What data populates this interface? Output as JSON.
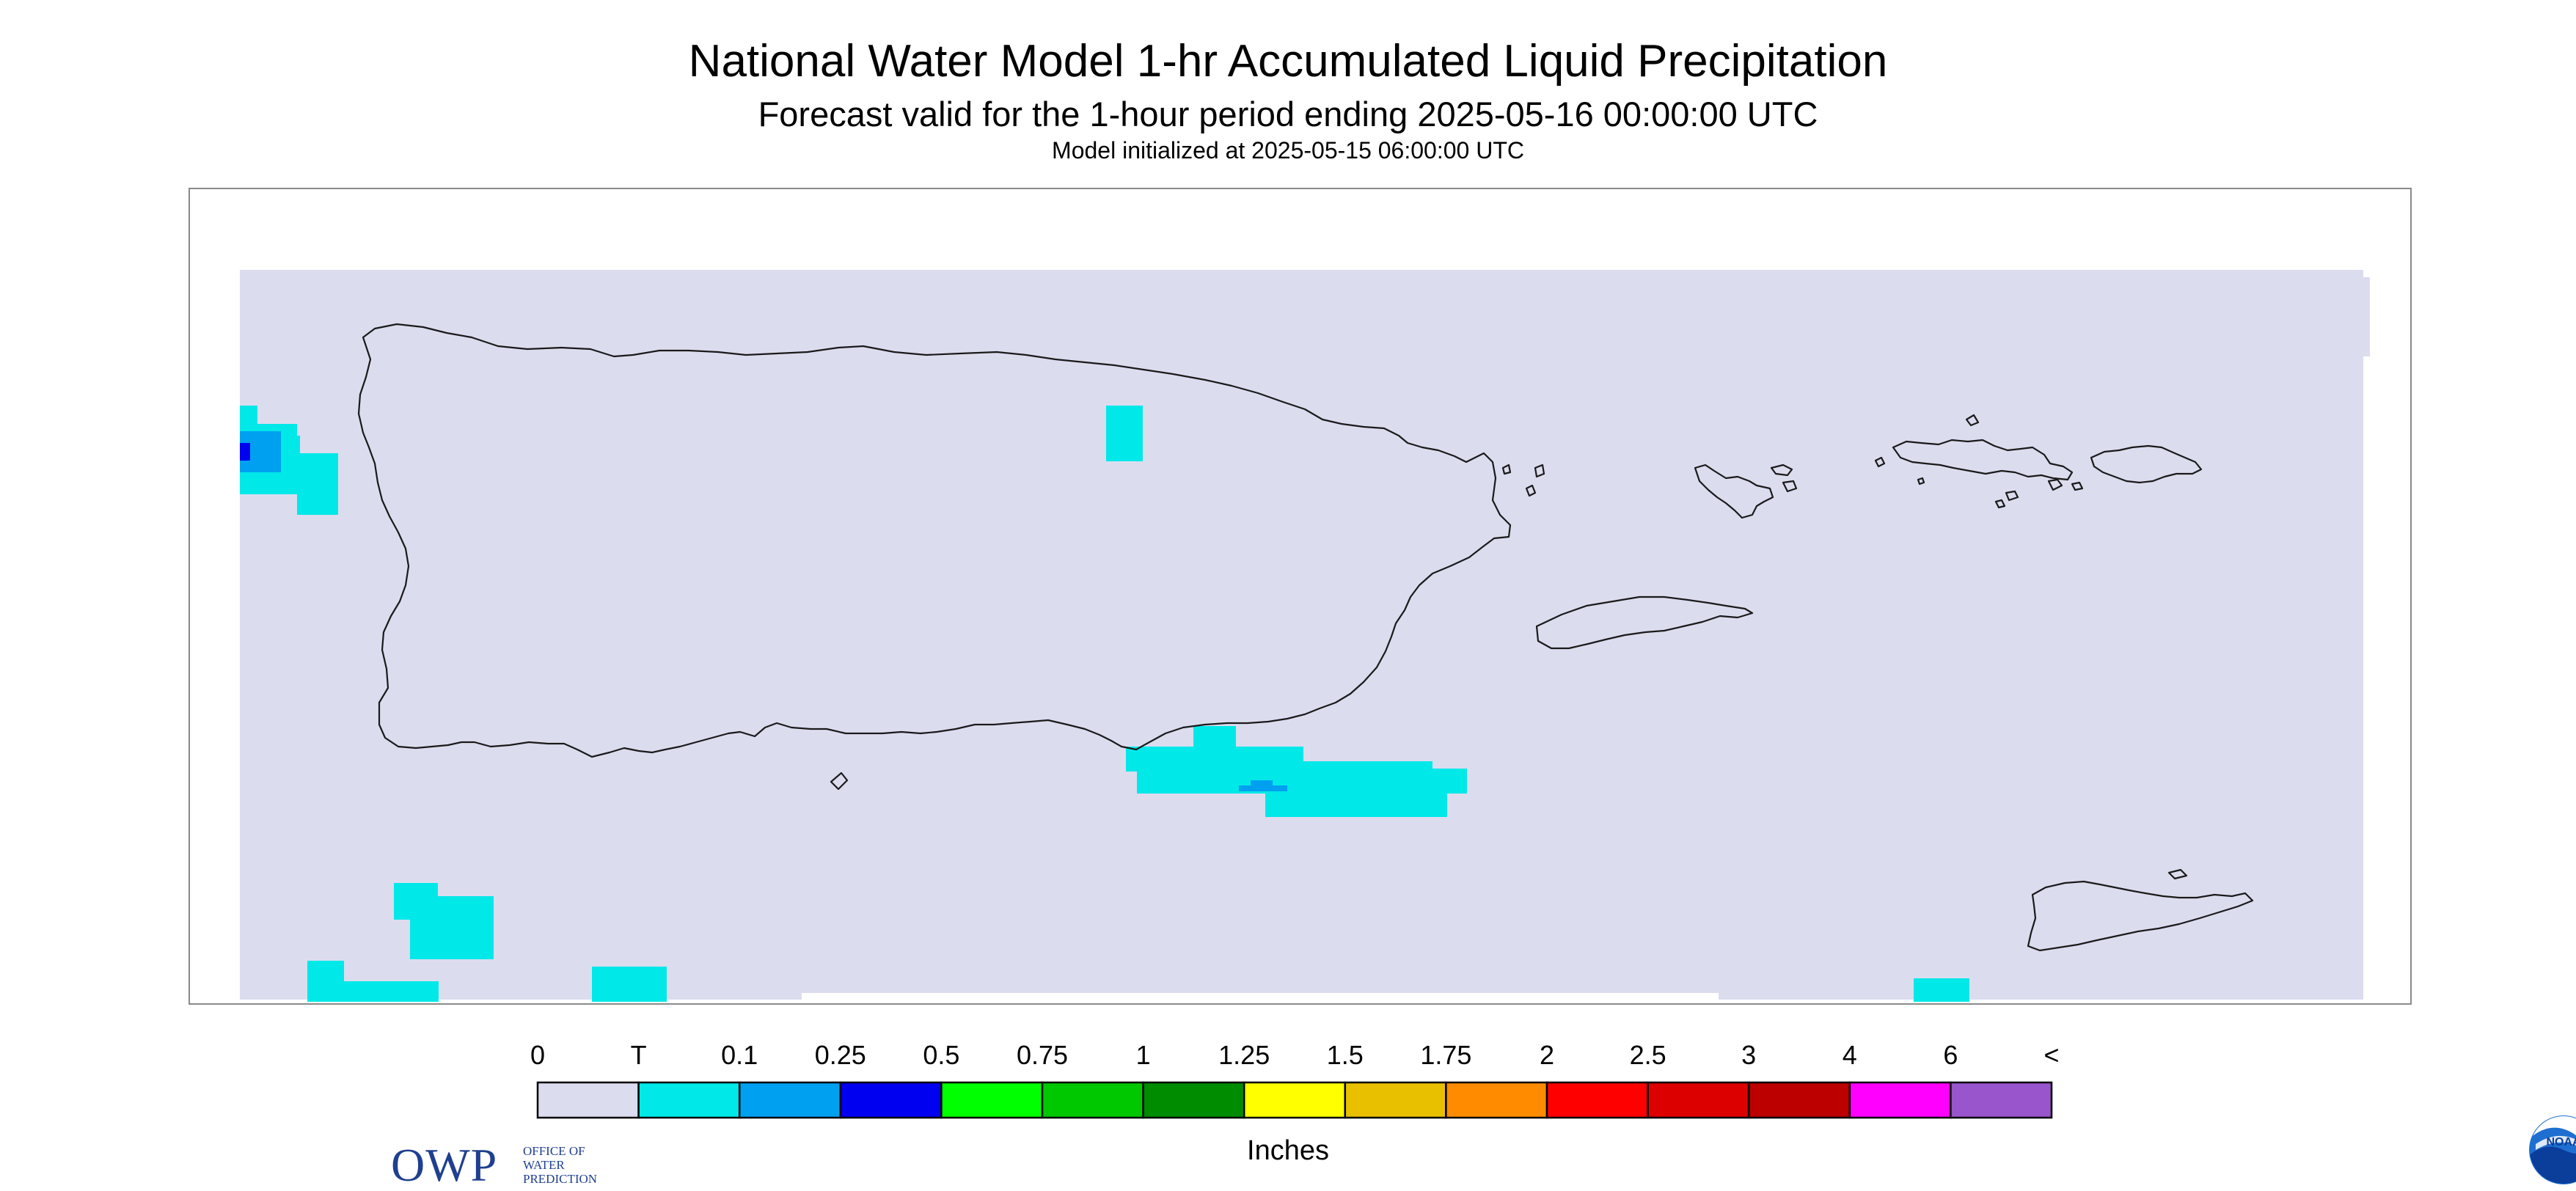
{
  "map": {
    "title": "National Water Model 1-hr Accumulated Liquid Precipitation",
    "subtitle": "Forecast valid for the 1-hour period ending 2025-05-16 00:00:00 UTC",
    "initialized": "Model initialized at 2025-05-15 06:00:00 UTC",
    "region_color": "#dcdcef",
    "coastline_color": "#1a1a1a",
    "coastlines": [
      "puerto-rico",
      "vieques",
      "culebra",
      "st-thomas",
      "st-john",
      "st-croix"
    ]
  },
  "legend": {
    "unit": "Inches",
    "labels": [
      "0",
      "T",
      "0.1",
      "0.25",
      "0.5",
      "0.75",
      "1",
      "1.25",
      "1.5",
      "1.75",
      "2",
      "2.5",
      "3",
      "4",
      "6",
      "<"
    ],
    "colors": [
      "#dcdcef",
      "#00e8e8",
      "#00a0f0",
      "#0000f0",
      "#00ff00",
      "#00c800",
      "#008c00",
      "#ffff00",
      "#e8c000",
      "#ff8c00",
      "#ff0000",
      "#dc0000",
      "#bc0000",
      "#ff00ff",
      "#9955cc"
    ]
  },
  "logos": {
    "owp": {
      "letters": "OWP",
      "lines": [
        "OFFICE OF",
        "WATER",
        "PREDICTION"
      ]
    },
    "noaa": {
      "text": "NOAA"
    }
  }
}
